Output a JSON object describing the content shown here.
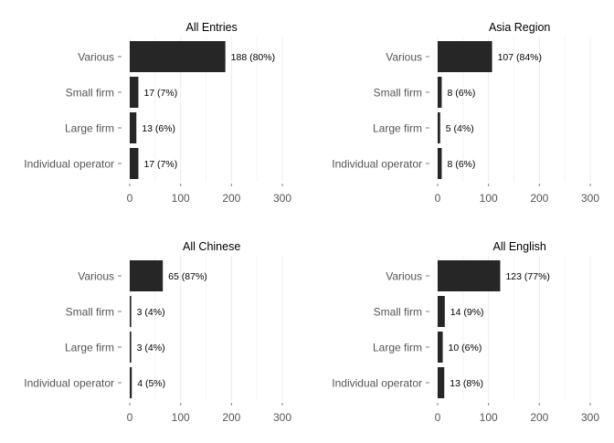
{
  "chart_data": [
    {
      "type": "bar",
      "orientation": "horizontal",
      "title": "All Entries",
      "categories": [
        "Various",
        "Small firm",
        "Large firm",
        "Individual operator"
      ],
      "values": [
        188,
        17,
        13,
        17
      ],
      "labels": [
        "188 (80%)",
        "17 (7%)",
        "13 (6%)",
        "17 (7%)"
      ],
      "xlim": [
        0,
        300
      ],
      "ticks": [
        "0",
        "100",
        "200",
        "300"
      ],
      "grid": true
    },
    {
      "type": "bar",
      "orientation": "horizontal",
      "title": "Asia Region",
      "categories": [
        "Various",
        "Small firm",
        "Large firm",
        "Individual operator"
      ],
      "values": [
        107,
        8,
        5,
        8
      ],
      "labels": [
        "107 (84%)",
        "8 (6%)",
        "5 (4%)",
        "8 (6%)"
      ],
      "xlim": [
        0,
        300
      ],
      "ticks": [
        "0",
        "100",
        "200",
        "300"
      ],
      "grid": true
    },
    {
      "type": "bar",
      "orientation": "horizontal",
      "title": "All Chinese",
      "categories": [
        "Various",
        "Small firm",
        "Large firm",
        "Individual operator"
      ],
      "values": [
        65,
        3,
        3,
        4
      ],
      "labels": [
        "65 (87%)",
        "3 (4%)",
        "3 (4%)",
        "4 (5%)"
      ],
      "xlim": [
        0,
        300
      ],
      "ticks": [
        "0",
        "100",
        "200",
        "300"
      ],
      "grid": true
    },
    {
      "type": "bar",
      "orientation": "horizontal",
      "title": "All English",
      "categories": [
        "Various",
        "Small firm",
        "Large firm",
        "Individual operator"
      ],
      "values": [
        123,
        14,
        10,
        13
      ],
      "labels": [
        "123 (77%)",
        "14 (9%)",
        "10 (6%)",
        "13 (8%)"
      ],
      "xlim": [
        0,
        300
      ],
      "ticks": [
        "0",
        "100",
        "200",
        "300"
      ],
      "grid": true
    }
  ],
  "colors": {
    "bar": "#262626",
    "grid": "#ececec",
    "axis_text": "#555555",
    "title_text": "#000000"
  }
}
